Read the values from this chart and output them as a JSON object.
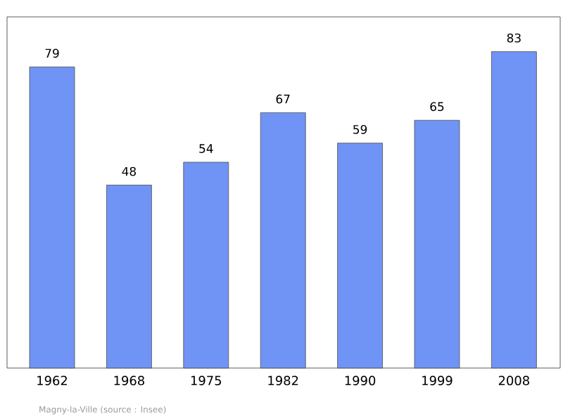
{
  "chart_data": {
    "type": "bar",
    "categories": [
      "1962",
      "1968",
      "1975",
      "1982",
      "1990",
      "1999",
      "2008"
    ],
    "values": [
      79,
      48,
      54,
      67,
      59,
      65,
      83
    ],
    "color": "#7094f5",
    "data_labels": true,
    "annotations": [
      "Magny-la-Ville    (source : Insee)"
    ]
  }
}
